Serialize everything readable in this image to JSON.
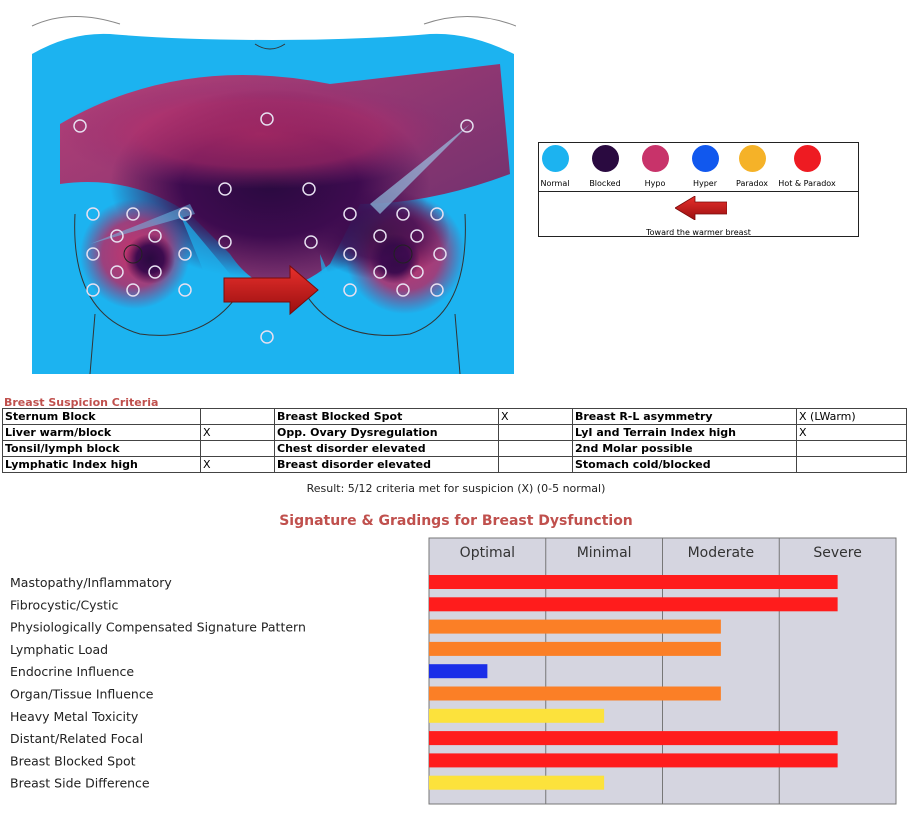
{
  "legend": {
    "items": [
      {
        "label": "Normal",
        "color": "#1cb3f0"
      },
      {
        "label": "Blocked",
        "color": "#2a0a40"
      },
      {
        "label": "Hypo",
        "color": "#c8336a"
      },
      {
        "label": "Hyper",
        "color": "#1158ee"
      },
      {
        "label": "Paradox",
        "color": "#f5b228"
      },
      {
        "label": "Hot & Paradox",
        "color": "#ee1b22"
      }
    ],
    "arrow_label": "Toward the warmer breast"
  },
  "criteria": {
    "title": "Breast Suspicion Criteria",
    "rows": [
      [
        {
          "label": "Sternum Block",
          "mark": ""
        },
        {
          "label": "Breast Blocked Spot",
          "mark": "X"
        },
        {
          "label": "Breast R-L asymmetry",
          "mark": "X (LWarm)"
        }
      ],
      [
        {
          "label": "Liver warm/block",
          "mark": "X"
        },
        {
          "label": "Opp. Ovary Dysregulation",
          "mark": ""
        },
        {
          "label": "LyI and Terrain Index high",
          "mark": "X"
        }
      ],
      [
        {
          "label": "Tonsil/lymph block",
          "mark": ""
        },
        {
          "label": "Chest disorder elevated",
          "mark": ""
        },
        {
          "label": "2nd Molar possible",
          "mark": ""
        }
      ],
      [
        {
          "label": "Lymphatic Index high",
          "mark": "X"
        },
        {
          "label": "Breast disorder elevated",
          "mark": ""
        },
        {
          "label": "Stomach cold/blocked",
          "mark": ""
        }
      ]
    ],
    "result": "Result: 5/12 criteria met for suspicion (X) (0-5 normal)"
  },
  "chart_data": {
    "type": "bar",
    "orientation": "horizontal",
    "title": "Signature & Gradings for Breast Dysfunction",
    "scale": [
      "Optimal",
      "Minimal",
      "Moderate",
      "Severe"
    ],
    "xlim": [
      0,
      4
    ],
    "categories": [
      "Mastopathy/Inflammatory",
      "Fibrocystic/Cystic",
      "Physiologically Compensated Signature Pattern",
      "Lymphatic Load",
      "Endocrine Influence",
      "Organ/Tissue Influence",
      "Heavy Metal Toxicity",
      "Distant/Related Focal",
      "Breast Blocked Spot",
      "Breast Side Difference"
    ],
    "values": [
      3.5,
      3.5,
      2.5,
      2.5,
      0.5,
      2.5,
      1.5,
      3.5,
      3.5,
      1.5
    ],
    "colors": [
      "#ff1c1c",
      "#ff1c1c",
      "#fb7f26",
      "#fb7f26",
      "#1a2ee8",
      "#fb7f26",
      "#fce23c",
      "#ff1c1c",
      "#ff1c1c",
      "#fce23c"
    ],
    "plot_background": "#d5d5e0"
  }
}
